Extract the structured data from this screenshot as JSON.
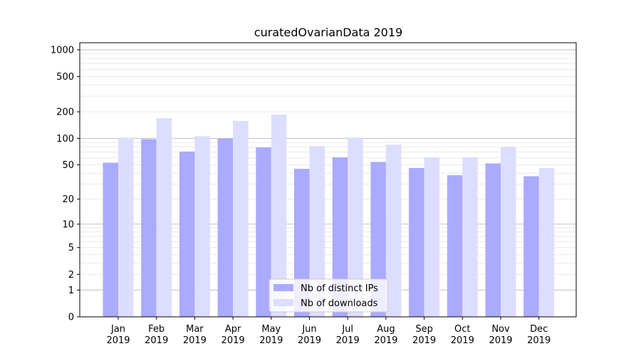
{
  "chart_data": {
    "type": "bar",
    "title": "curatedOvarianData 2019",
    "xlabel": "",
    "ylabel": "",
    "yscale": "log(1+y)",
    "ylim": [
      0,
      1200
    ],
    "yticks": [
      {
        "value": 0,
        "label": "0"
      },
      {
        "value": 1,
        "label": "1"
      },
      {
        "value": 2,
        "label": "2"
      },
      {
        "value": 5,
        "label": "5"
      },
      {
        "value": 10,
        "label": "10"
      },
      {
        "value": 20,
        "label": "20"
      },
      {
        "value": 50,
        "label": "50"
      },
      {
        "value": 100,
        "label": "100"
      },
      {
        "value": 200,
        "label": "200"
      },
      {
        "value": 500,
        "label": "500"
      },
      {
        "value": 1000,
        "label": "1000"
      }
    ],
    "categories": [
      {
        "month": "Jan",
        "year": "2019"
      },
      {
        "month": "Feb",
        "year": "2019"
      },
      {
        "month": "Mar",
        "year": "2019"
      },
      {
        "month": "Apr",
        "year": "2019"
      },
      {
        "month": "May",
        "year": "2019"
      },
      {
        "month": "Jun",
        "year": "2019"
      },
      {
        "month": "Jul",
        "year": "2019"
      },
      {
        "month": "Aug",
        "year": "2019"
      },
      {
        "month": "Sep",
        "year": "2019"
      },
      {
        "month": "Oct",
        "year": "2019"
      },
      {
        "month": "Nov",
        "year": "2019"
      },
      {
        "month": "Dec",
        "year": "2019"
      }
    ],
    "series": [
      {
        "name": "Nb of distinct IPs",
        "color": "#aaaaff",
        "values": [
          53,
          98,
          71,
          100,
          79,
          45,
          61,
          54,
          46,
          38,
          52,
          37
        ]
      },
      {
        "name": "Nb of downloads",
        "color": "#ddddff",
        "values": [
          102,
          170,
          106,
          158,
          186,
          82,
          102,
          85,
          61,
          61,
          80,
          46
        ]
      }
    ],
    "grid": true,
    "legend": "bottom-center"
  }
}
